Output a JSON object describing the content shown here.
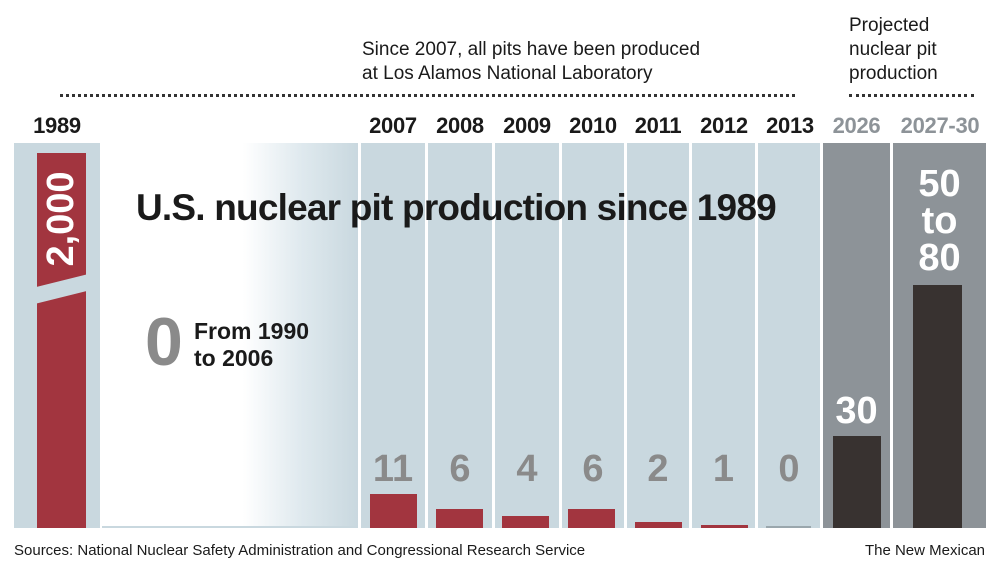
{
  "chart_data": {
    "type": "bar",
    "title": "U.S. nuclear pit production since 1989",
    "categories": [
      "1989",
      "2007",
      "2008",
      "2009",
      "2010",
      "2011",
      "2012",
      "2013",
      "2026",
      "2027-30"
    ],
    "values": [
      2000,
      11,
      6,
      4,
      6,
      2,
      1,
      0,
      30,
      80
    ],
    "value_labels": [
      "2,000",
      "11",
      "6",
      "4",
      "6",
      "2",
      "1",
      "0",
      "30",
      "50 to 80"
    ],
    "projected": [
      "2026",
      "2027-30"
    ],
    "gap": {
      "value": "0",
      "label_line1": "From 1990",
      "label_line2": "to 2006"
    },
    "annotations": {
      "lanl_line1": "Since 2007, all pits have been produced",
      "lanl_line2": "at Los Alamos National Laboratory",
      "proj_line1": "Projected",
      "proj_line2": "nuclear pit",
      "proj_line3": "production"
    },
    "colors": {
      "historical": "#a2353f",
      "projected": "#383230",
      "column_bg": "#c9d8df",
      "projected_bg": "#8d9398"
    }
  },
  "footer": {
    "sources": "Sources: National Nuclear Safety Administration and Congressional Research Service",
    "credit": "The New Mexican"
  },
  "labels_2027": {
    "line1": "50",
    "line2": "to",
    "line3": "80"
  }
}
